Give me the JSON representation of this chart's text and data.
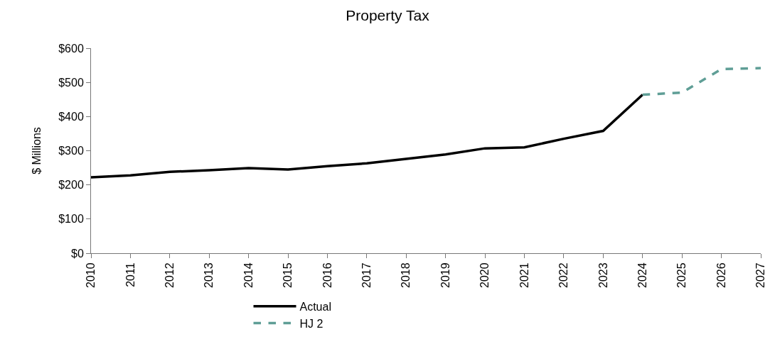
{
  "chart_data": {
    "type": "line",
    "title": "Property Tax",
    "ylabel": "$ Millions",
    "x": [
      2010,
      2011,
      2012,
      2013,
      2014,
      2015,
      2016,
      2017,
      2018,
      2019,
      2020,
      2021,
      2022,
      2023,
      2024,
      2025,
      2026,
      2027
    ],
    "series": [
      {
        "name": "Actual",
        "color": "#000000",
        "line_style": "solid",
        "values": [
          222,
          228,
          238,
          243,
          249,
          245,
          255,
          263,
          276,
          289,
          307,
          310,
          335,
          358,
          464,
          null,
          null,
          null
        ]
      },
      {
        "name": "HJ 2",
        "color": "#5f9e96",
        "line_style": "dashed",
        "values": [
          null,
          null,
          null,
          null,
          null,
          null,
          null,
          null,
          null,
          null,
          null,
          null,
          null,
          null,
          464,
          470,
          539,
          542
        ]
      }
    ],
    "xlim": [
      2010,
      2027
    ],
    "xticks": [
      2010,
      2011,
      2012,
      2013,
      2014,
      2015,
      2016,
      2017,
      2018,
      2019,
      2020,
      2021,
      2022,
      2023,
      2024,
      2025,
      2026,
      2027
    ],
    "ylim": [
      0,
      600
    ],
    "yticks": [
      {
        "value": 0,
        "label": "$0"
      },
      {
        "value": 100,
        "label": "$100"
      },
      {
        "value": 200,
        "label": "$200"
      },
      {
        "value": 300,
        "label": "$300"
      },
      {
        "value": 400,
        "label": "$400"
      },
      {
        "value": 500,
        "label": "$500"
      },
      {
        "value": 600,
        "label": "$600"
      }
    ],
    "grid": false,
    "legend": "bottom",
    "marker": "none"
  }
}
